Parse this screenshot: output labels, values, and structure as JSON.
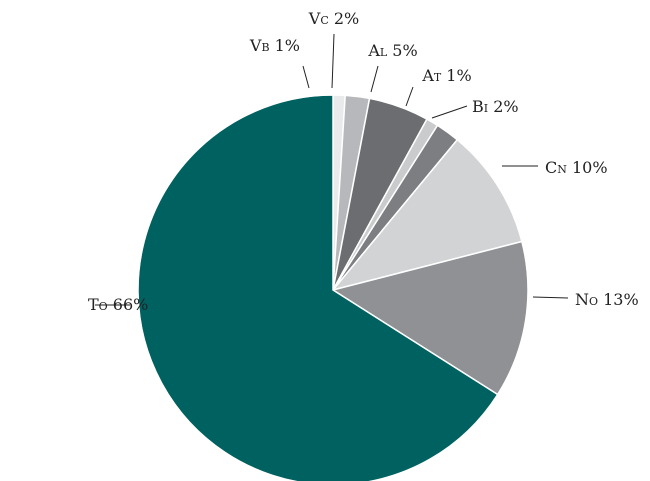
{
  "chart_data": {
    "type": "pie",
    "title": "",
    "categories": [
      "To",
      "Vb",
      "Vc",
      "Al",
      "At",
      "Bi",
      "Cn",
      "No"
    ],
    "values": [
      66,
      1,
      2,
      5,
      1,
      2,
      10,
      13
    ],
    "labels": [
      "To 66%",
      "Vb 1%",
      "Vc 2%",
      "Al 5%",
      "At 1%",
      "Bi 2%",
      "Cn 10%",
      "No 13%"
    ],
    "colors": [
      "#006161",
      "#e9eaeb",
      "#b6b8bb",
      "#6b6d70",
      "#c9cbcd",
      "#7c7e82",
      "#d2d3d5",
      "#8f9195"
    ],
    "legend": "none"
  }
}
